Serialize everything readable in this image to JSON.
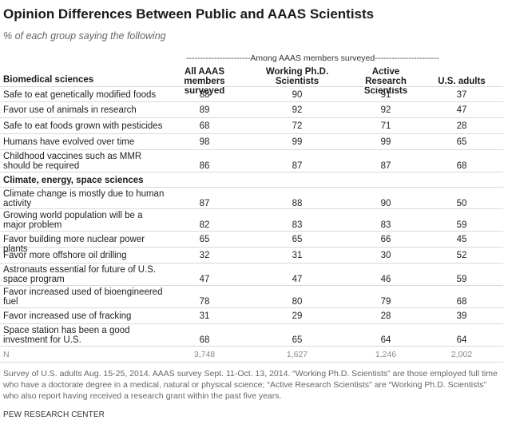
{
  "title": "Opinion Differences Between Public and AAAS Scientists",
  "subtitle": "% of each group saying the following",
  "among_label": "-----------------------Among AAAS members surveyed-----------------------",
  "columns": [
    "All AAAS members surveyed",
    "Working Ph.D. Scientists",
    "Active Research Scientists",
    "U.S. adults"
  ],
  "sections": [
    {
      "name": "Biomedical sciences",
      "rows": [
        {
          "label": "Safe to eat genetically modified foods",
          "values": [
            "88",
            "90",
            "91",
            "37"
          ]
        },
        {
          "label": "Favor use of animals in research",
          "values": [
            "89",
            "92",
            "92",
            "47"
          ]
        },
        {
          "label": "Safe to eat foods grown with pesticides",
          "values": [
            "68",
            "72",
            "71",
            "28"
          ]
        },
        {
          "label": "Humans have evolved over time",
          "values": [
            "98",
            "99",
            "99",
            "65"
          ]
        },
        {
          "label": "Childhood vaccines such as MMR should be required",
          "values": [
            "86",
            "87",
            "87",
            "68"
          ]
        }
      ]
    },
    {
      "name": "Climate, energy, space sciences",
      "rows": [
        {
          "label": "Climate change is mostly due to human activity",
          "values": [
            "87",
            "88",
            "90",
            "50"
          ]
        },
        {
          "label": "Growing world population will be a major problem",
          "values": [
            "82",
            "83",
            "83",
            "59"
          ]
        },
        {
          "label": "Favor building more nuclear power plants",
          "values": [
            "65",
            "65",
            "66",
            "45"
          ]
        },
        {
          "label": "Favor more offshore oil drilling",
          "values": [
            "32",
            "31",
            "30",
            "52"
          ]
        },
        {
          "label": "Astronauts essential for future of U.S. space program",
          "values": [
            "47",
            "47",
            "46",
            "59"
          ]
        },
        {
          "label": "Favor increased used of bioengineered fuel",
          "values": [
            "78",
            "80",
            "79",
            "68"
          ]
        },
        {
          "label": "Favor increased use of fracking",
          "values": [
            "31",
            "29",
            "28",
            "39"
          ]
        },
        {
          "label": "Space station has been a good investment for U.S.",
          "values": [
            "68",
            "65",
            "64",
            "64"
          ]
        }
      ]
    }
  ],
  "n_row": {
    "label": "N",
    "values": [
      "3,748",
      "1,627",
      "1,246",
      "2,002"
    ]
  },
  "note": "Survey of U.S. adults Aug. 15-25, 2014. AAAS survey Sept. 11-Oct. 13, 2014. “Working Ph.D. Scientists” are those employed full time who have a doctorate degree in a medical, natural or physical science; “Active Research Scientists” are “Working Ph.D. Scientists” who also report having received a research grant within the past five years.",
  "source": "PEW RESEARCH CENTER"
}
